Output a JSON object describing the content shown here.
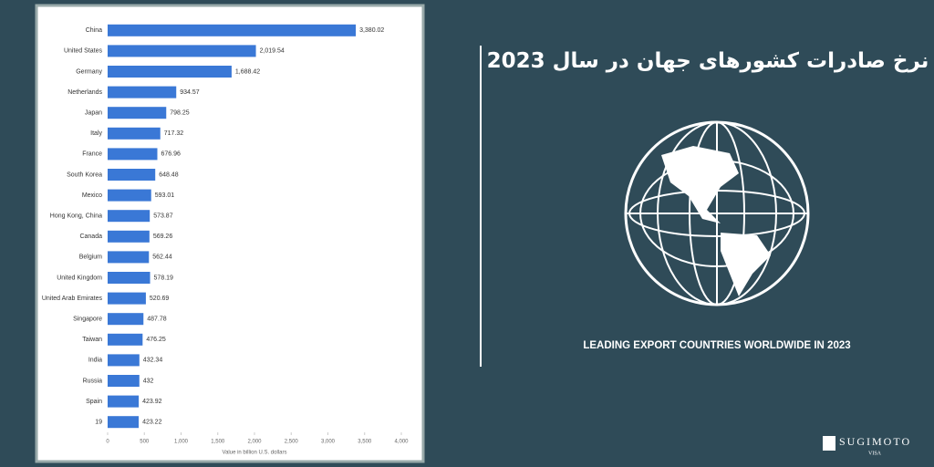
{
  "chart_data": {
    "type": "bar",
    "categories": [
      "China",
      "United States",
      "Germany",
      "Netherlands",
      "Japan",
      "Italy",
      "France",
      "South Korea",
      "Mexico",
      "Hong Kong, China",
      "Canada",
      "Belgium",
      "United Kingdom",
      "United Arab Emirates",
      "Singapore",
      "Taiwan",
      "India",
      "Russia",
      "Spain",
      "19"
    ],
    "values": [
      3380.02,
      2019.54,
      1688.42,
      934.57,
      798.25,
      717.32,
      676.96,
      648.48,
      593.01,
      573.87,
      569.26,
      562.44,
      578.19,
      520.69,
      487.78,
      476.25,
      432.34,
      432,
      423.92,
      423.22
    ],
    "value_labels": [
      "3,380.02",
      "2,019.54",
      "1,688.42",
      "934.57",
      "798.25",
      "717.32",
      "676.96",
      "648.48",
      "593.01",
      "573.87",
      "569.26",
      "562.44",
      "578.19",
      "520.69",
      "487.78",
      "476.25",
      "432.34",
      "432",
      "423.92",
      "423.22"
    ],
    "color": "#3a78d6",
    "xlim": [
      0,
      4000
    ],
    "xticks": [
      0,
      500,
      {
        "value": 1000,
        "label": "1,000"
      },
      {
        "value": 1500,
        "label": "1,500"
      },
      {
        "value": 2000,
        "label": "2,000"
      },
      {
        "value": 2500,
        "label": "2,500"
      },
      {
        "value": 3000,
        "label": "3,000"
      },
      {
        "value": 3500,
        "label": "3,500"
      },
      {
        "value": 4000,
        "label": "4,000"
      }
    ],
    "x_label": "Value in billion U.S. dollars"
  },
  "banner": {
    "title": "نرخ صادرات کشورهای جهان در سال 2023",
    "subtitle": "LEADING EXPORT COUNTRIES WORLDWIDE IN 2023",
    "logo": {
      "name": "SUGIMOTO",
      "tagline": "VISA"
    }
  }
}
